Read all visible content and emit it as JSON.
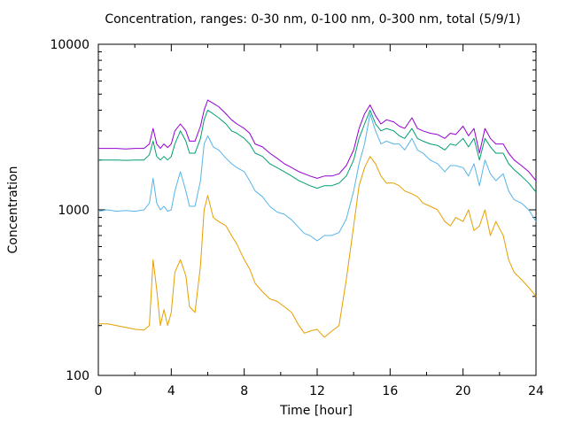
{
  "chart_data": {
    "type": "line",
    "title": "Concentration, ranges: 0-30 nm, 0-100 nm, 0-300 nm, total (5/9/1)",
    "xlabel": "Time [hour]",
    "ylabel": "Concentration",
    "xlim": [
      0,
      24
    ],
    "ylim": [
      100,
      10000
    ],
    "yscale": "log",
    "grid": false,
    "legend": "none",
    "x_ticks": [
      0,
      4,
      8,
      12,
      16,
      20,
      24
    ],
    "x_tick_labels": [
      "0",
      "4",
      "8",
      "12",
      "16",
      "20",
      "24"
    ],
    "y_ticks": [
      100,
      1000,
      10000
    ],
    "y_tick_labels": [
      "100",
      "1000",
      "10000"
    ],
    "x": [
      0,
      0.5,
      1,
      1.5,
      2,
      2.5,
      2.8,
      3,
      3.2,
      3.4,
      3.6,
      3.8,
      4,
      4.2,
      4.5,
      4.8,
      5,
      5.3,
      5.6,
      5.8,
      6,
      6.3,
      6.6,
      7,
      7.3,
      7.6,
      8,
      8.3,
      8.6,
      9,
      9.4,
      9.8,
      10.2,
      10.6,
      11,
      11.3,
      11.6,
      12,
      12.4,
      12.8,
      13.2,
      13.6,
      14,
      14.3,
      14.6,
      14.9,
      15.2,
      15.5,
      15.8,
      16.2,
      16.5,
      16.8,
      17.2,
      17.5,
      17.8,
      18.2,
      18.6,
      19,
      19.3,
      19.6,
      20,
      20.3,
      20.6,
      20.9,
      21.2,
      21.5,
      21.8,
      22.2,
      22.5,
      22.8,
      23.2,
      23.6,
      24
    ],
    "series": [
      {
        "color": "#e69f00",
        "values": [
          205,
          205,
          200,
          195,
          190,
          188,
          200,
          500,
          330,
          200,
          250,
          200,
          240,
          420,
          500,
          400,
          260,
          240,
          460,
          1000,
          1220,
          900,
          850,
          800,
          700,
          620,
          500,
          440,
          360,
          320,
          290,
          280,
          260,
          240,
          200,
          180,
          185,
          190,
          170,
          185,
          200,
          380,
          800,
          1400,
          1800,
          2100,
          1900,
          1600,
          1450,
          1450,
          1400,
          1300,
          1250,
          1200,
          1100,
          1050,
          1000,
          850,
          800,
          900,
          850,
          1000,
          750,
          800,
          1000,
          700,
          850,
          700,
          500,
          420,
          380,
          340,
          300
        ]
      },
      {
        "color": "#56b4e9",
        "values": [
          980,
          1000,
          980,
          990,
          980,
          1000,
          1100,
          1550,
          1100,
          1000,
          1050,
          980,
          1000,
          1300,
          1700,
          1300,
          1050,
          1050,
          1500,
          2500,
          2800,
          2400,
          2300,
          2050,
          1900,
          1800,
          1700,
          1500,
          1300,
          1200,
          1050,
          970,
          940,
          870,
          780,
          720,
          700,
          650,
          700,
          700,
          730,
          880,
          1300,
          1900,
          2500,
          3800,
          3000,
          2500,
          2600,
          2500,
          2500,
          2300,
          2700,
          2300,
          2200,
          2000,
          1900,
          1700,
          1850,
          1850,
          1800,
          1600,
          1900,
          1400,
          2000,
          1650,
          1500,
          1650,
          1300,
          1150,
          1100,
          1000,
          850
        ]
      },
      {
        "color": "#009e73",
        "values": [
          2000,
          2000,
          2000,
          1990,
          2000,
          2000,
          2150,
          2600,
          2100,
          2000,
          2100,
          2000,
          2100,
          2500,
          3000,
          2600,
          2200,
          2200,
          2700,
          3500,
          4000,
          3800,
          3600,
          3300,
          3000,
          2900,
          2700,
          2500,
          2200,
          2100,
          1900,
          1800,
          1700,
          1600,
          1500,
          1450,
          1400,
          1350,
          1400,
          1400,
          1450,
          1600,
          2000,
          2700,
          3300,
          4000,
          3300,
          3000,
          3100,
          3000,
          2800,
          2700,
          3100,
          2700,
          2600,
          2500,
          2450,
          2300,
          2500,
          2450,
          2700,
          2400,
          2700,
          2000,
          2700,
          2400,
          2200,
          2200,
          1900,
          1750,
          1600,
          1450,
          1280
        ]
      },
      {
        "color": "#9400d3",
        "values": [
          2350,
          2350,
          2350,
          2330,
          2350,
          2350,
          2500,
          3100,
          2500,
          2350,
          2500,
          2380,
          2500,
          3000,
          3300,
          3000,
          2600,
          2600,
          3200,
          4000,
          4600,
          4400,
          4200,
          3800,
          3500,
          3300,
          3100,
          2900,
          2500,
          2400,
          2200,
          2050,
          1900,
          1800,
          1700,
          1650,
          1600,
          1550,
          1600,
          1600,
          1650,
          1850,
          2300,
          3100,
          3800,
          4300,
          3700,
          3300,
          3500,
          3400,
          3200,
          3100,
          3600,
          3100,
          3000,
          2900,
          2850,
          2700,
          2900,
          2850,
          3200,
          2800,
          3100,
          2200,
          3100,
          2700,
          2500,
          2500,
          2200,
          2000,
          1850,
          1700,
          1500
        ]
      }
    ]
  }
}
